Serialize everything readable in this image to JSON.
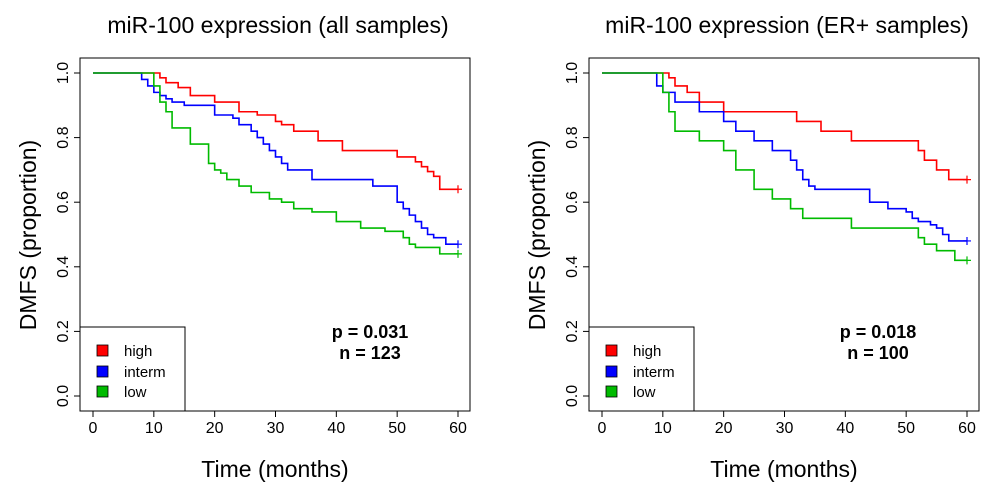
{
  "chart_data": [
    {
      "type": "line",
      "title": "miR-100 expression (all samples)",
      "xlabel": "Time (months)",
      "ylabel": "DMFS (proportion)",
      "xlim": [
        0,
        60
      ],
      "ylim": [
        0,
        1
      ],
      "xticks": [
        "0",
        "10",
        "20",
        "30",
        "40",
        "50",
        "60"
      ],
      "yticks": [
        "0.0",
        "0.2",
        "0.4",
        "0.6",
        "0.8",
        "1.0"
      ],
      "annotations": [
        "p = 0.031",
        "n = 123"
      ],
      "legend_position": "bottom-left",
      "series": [
        {
          "name": "high",
          "color": "#ff0000",
          "x": [
            0,
            11,
            12,
            14,
            16,
            20,
            24,
            27,
            30,
            31,
            33,
            37,
            41,
            45,
            48,
            50,
            51,
            53,
            54,
            55,
            56,
            57,
            60
          ],
          "y": [
            1.0,
            0.985,
            0.97,
            0.955,
            0.93,
            0.91,
            0.88,
            0.87,
            0.85,
            0.84,
            0.82,
            0.79,
            0.76,
            0.76,
            0.76,
            0.74,
            0.74,
            0.725,
            0.71,
            0.695,
            0.68,
            0.64,
            0.64
          ]
        },
        {
          "name": "interm",
          "color": "#0000ff",
          "x": [
            0,
            8,
            9,
            10,
            11,
            12,
            13,
            15,
            20,
            23,
            24,
            26,
            27,
            28,
            29,
            30,
            31,
            32,
            36,
            41,
            46,
            50,
            51,
            52,
            53,
            54,
            55,
            56,
            58,
            60
          ],
          "y": [
            1.0,
            0.98,
            0.96,
            0.94,
            0.93,
            0.92,
            0.91,
            0.9,
            0.87,
            0.86,
            0.84,
            0.82,
            0.8,
            0.78,
            0.76,
            0.74,
            0.72,
            0.7,
            0.67,
            0.67,
            0.65,
            0.6,
            0.58,
            0.56,
            0.54,
            0.52,
            0.5,
            0.49,
            0.47,
            0.47
          ]
        },
        {
          "name": "low",
          "color": "#00bb00",
          "x": [
            0,
            10,
            11,
            12,
            13,
            16,
            19,
            20,
            21,
            22,
            24,
            26,
            29,
            31,
            33,
            36,
            40,
            44,
            48,
            50,
            51,
            52,
            53,
            57,
            58,
            60
          ],
          "y": [
            1.0,
            0.96,
            0.91,
            0.88,
            0.83,
            0.78,
            0.72,
            0.7,
            0.69,
            0.67,
            0.65,
            0.63,
            0.61,
            0.6,
            0.58,
            0.57,
            0.54,
            0.52,
            0.51,
            0.51,
            0.49,
            0.47,
            0.46,
            0.44,
            0.44,
            0.44
          ]
        }
      ]
    },
    {
      "type": "line",
      "title": "miR-100 expression (ER+ samples)",
      "xlabel": "Time (months)",
      "ylabel": "DMFS (proportion)",
      "xlim": [
        0,
        60
      ],
      "ylim": [
        0,
        1
      ],
      "xticks": [
        "0",
        "10",
        "20",
        "30",
        "40",
        "50",
        "60"
      ],
      "yticks": [
        "0.0",
        "0.2",
        "0.4",
        "0.6",
        "0.8",
        "1.0"
      ],
      "annotations": [
        "p = 0.018",
        "n = 100"
      ],
      "legend_position": "bottom-left",
      "series": [
        {
          "name": "high",
          "color": "#ff0000",
          "x": [
            0,
            11,
            12,
            14,
            16,
            20,
            29,
            32,
            36,
            41,
            48,
            52,
            53,
            55,
            57,
            60
          ],
          "y": [
            1.0,
            0.985,
            0.96,
            0.94,
            0.91,
            0.88,
            0.88,
            0.85,
            0.82,
            0.79,
            0.79,
            0.76,
            0.73,
            0.7,
            0.67,
            0.67
          ]
        },
        {
          "name": "interm",
          "color": "#0000ff",
          "x": [
            0,
            9,
            10,
            12,
            16,
            20,
            22,
            25,
            28,
            31,
            32,
            33,
            34,
            35,
            37,
            44,
            47,
            50,
            51,
            52,
            54,
            55,
            56,
            57,
            60
          ],
          "y": [
            1.0,
            0.96,
            0.94,
            0.91,
            0.88,
            0.85,
            0.82,
            0.79,
            0.76,
            0.73,
            0.7,
            0.67,
            0.65,
            0.64,
            0.64,
            0.6,
            0.58,
            0.57,
            0.55,
            0.54,
            0.53,
            0.52,
            0.5,
            0.48,
            0.48
          ]
        },
        {
          "name": "low",
          "color": "#00bb00",
          "x": [
            0,
            10,
            11,
            12,
            16,
            20,
            22,
            25,
            28,
            31,
            33,
            41,
            52,
            53,
            55,
            58,
            60
          ],
          "y": [
            1.0,
            0.94,
            0.88,
            0.82,
            0.79,
            0.76,
            0.7,
            0.64,
            0.61,
            0.58,
            0.55,
            0.52,
            0.49,
            0.47,
            0.45,
            0.42,
            0.42
          ]
        }
      ]
    }
  ]
}
